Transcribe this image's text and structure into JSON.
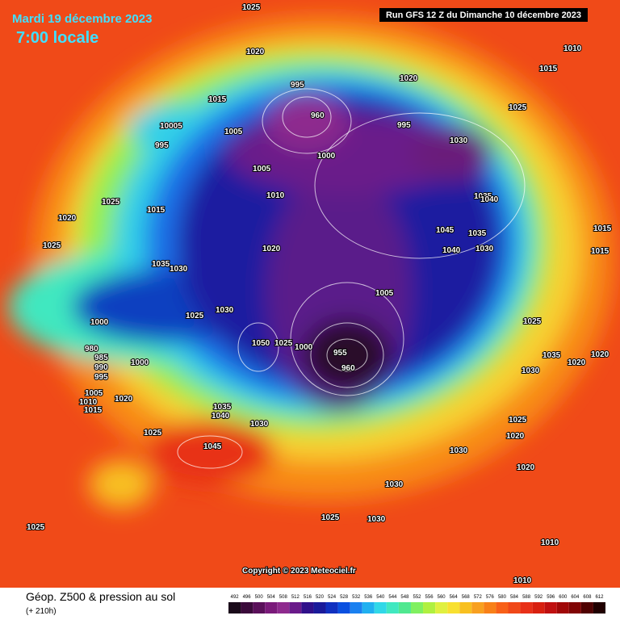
{
  "header": {
    "date": "Mardi 19 décembre 2023",
    "time": "7:00 locale",
    "run": "Run GFS 12 Z du Dimanche 10 décembre 2023"
  },
  "copyright": "Copyright © 2023 Meteociel.fr",
  "footer": {
    "title": "Géop. Z500 & pression au sol",
    "lead": "(+ 210h)"
  },
  "colorbar": {
    "labels": [
      492,
      496,
      500,
      504,
      508,
      512,
      516,
      520,
      524,
      528,
      532,
      536,
      540,
      544,
      548,
      552,
      556,
      560,
      564,
      568,
      572,
      576,
      580,
      584,
      588,
      592,
      596,
      600,
      604,
      608,
      612
    ],
    "colors": [
      "#1a0a1a",
      "#3a0a3a",
      "#5a105a",
      "#7a1a7a",
      "#8e2a8e",
      "#6a1a8a",
      "#30108a",
      "#1a1a9a",
      "#1030c0",
      "#0a50e0",
      "#1a80f0",
      "#20b0f0",
      "#30d8e8",
      "#40e8c0",
      "#50e890",
      "#80f060",
      "#b0f040",
      "#e0f040",
      "#f8e030",
      "#f8c020",
      "#f8a020",
      "#f88018",
      "#f86018",
      "#f04818",
      "#e83018",
      "#d82010",
      "#c01010",
      "#a00808",
      "#800404",
      "#500202",
      "#200000"
    ]
  },
  "isobar_labels": [
    1025,
    1020,
    1010,
    1015,
    1020,
    1025,
    1015,
    995,
    960,
    995,
    1030,
    10005,
    995,
    1005,
    1000,
    1005,
    1010,
    1025,
    1015,
    1020,
    1025,
    1035,
    1040,
    1045,
    1040,
    1035,
    1030,
    1020,
    1035,
    1030,
    1025,
    1000,
    980,
    985,
    990,
    995,
    1000,
    1005,
    1010,
    1015,
    1020,
    1025,
    1030,
    1050,
    1025,
    1000,
    955,
    960,
    1005,
    1035,
    1040,
    1030,
    1045,
    1025,
    1030,
    1030,
    1025,
    1020,
    1020,
    1030,
    1025,
    1010,
    1015,
    1010,
    1015,
    1025,
    1030,
    1035,
    1020,
    1020
  ]
}
